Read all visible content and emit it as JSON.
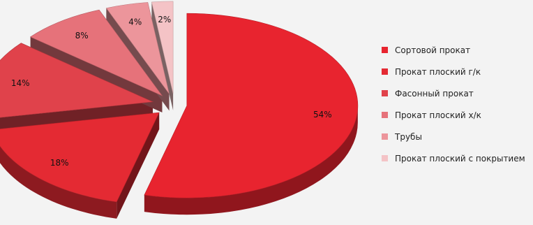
{
  "chart_data": {
    "type": "pie",
    "categories": [
      "Сортовой прокат",
      "Прокат плоский г/к",
      "Фасонный прокат",
      "Прокат плоский х/к",
      "Трубы",
      "Прокат плоский с покрытием"
    ],
    "values": [
      54,
      18,
      14,
      8,
      4,
      2
    ],
    "data_labels": [
      "54%",
      "18%",
      "14%",
      "8%",
      "4%",
      "2%"
    ],
    "style": "3d-exploded",
    "legend_position": "right",
    "colors": [
      "#e8242f",
      "#e42a33",
      "#e0424b",
      "#e6727a",
      "#ec959b",
      "#f4c3c6"
    ]
  }
}
